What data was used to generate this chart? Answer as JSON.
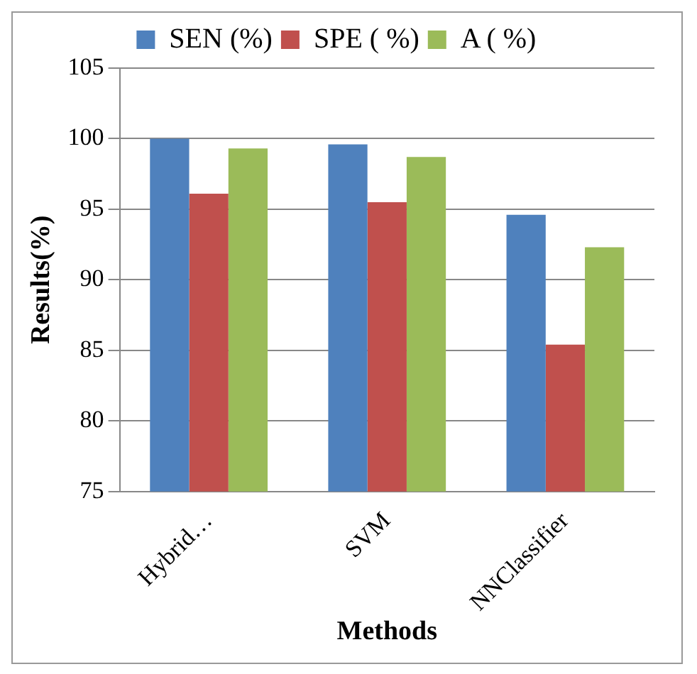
{
  "chart_data": {
    "type": "bar",
    "xlabel": "Methods",
    "ylabel": "Results(%)",
    "categories": [
      "Hybrid…",
      "SVM",
      "NNClassifier"
    ],
    "series": [
      {
        "name": "SEN (%)",
        "color": "#4f81bd",
        "values": [
          100,
          99.6,
          94.6
        ]
      },
      {
        "name": "SPE ( %)",
        "color": "#c0504d",
        "values": [
          96.1,
          95.5,
          85.4
        ]
      },
      {
        "name": "A ( %)",
        "color": "#9bbb59",
        "values": [
          99.3,
          98.7,
          92.3
        ]
      }
    ],
    "ylim": [
      75,
      105
    ],
    "yticks": [
      75,
      80,
      85,
      90,
      95,
      100,
      105
    ],
    "grid": "y",
    "legend": "top"
  }
}
